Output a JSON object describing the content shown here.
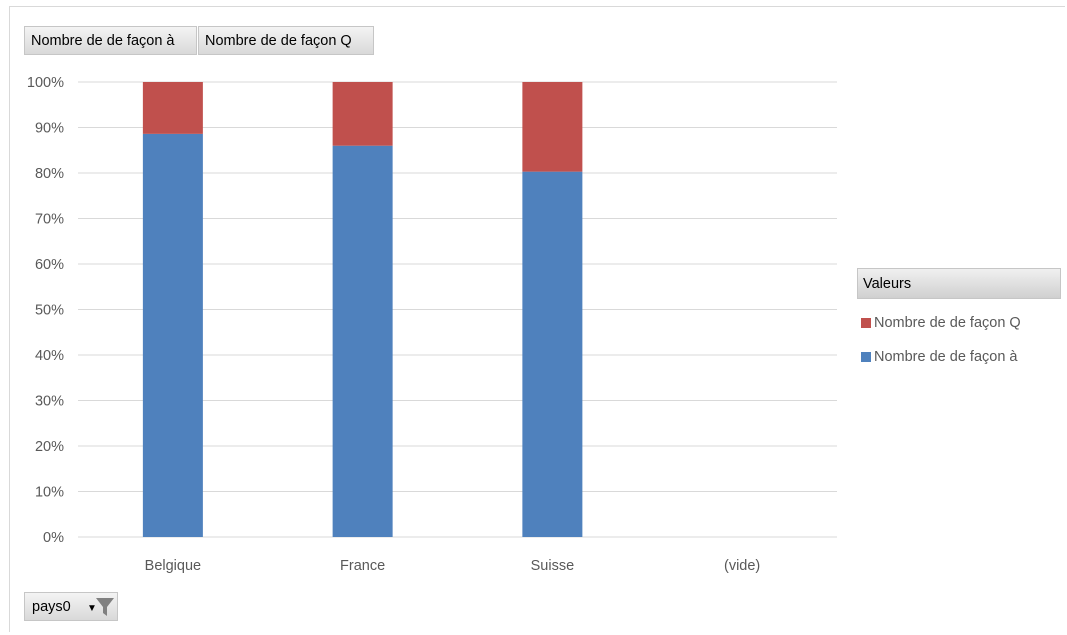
{
  "value_buttons": [
    "Nombre de de façon à",
    "Nombre de de façon Q"
  ],
  "axis_filter": {
    "label": "pays0"
  },
  "legend": {
    "title": "Valeurs",
    "entries": [
      "Nombre de de façon Q",
      "Nombre de de façon à"
    ]
  },
  "colors": {
    "series_a": "#4f81bd",
    "series_q": "#c0504d",
    "grid": "#d9d9d9"
  },
  "chart_data": {
    "type": "bar",
    "stacked": "percent",
    "categories": [
      "Belgique",
      "France",
      "Suisse",
      "(vide)"
    ],
    "series": [
      {
        "name": "Nombre de de façon à",
        "values": [
          88.6,
          86.0,
          80.3,
          0
        ]
      },
      {
        "name": "Nombre de de façon Q",
        "values": [
          11.4,
          14.0,
          19.7,
          0
        ]
      }
    ],
    "yticks": [
      "0%",
      "10%",
      "20%",
      "30%",
      "40%",
      "50%",
      "60%",
      "70%",
      "80%",
      "90%",
      "100%"
    ],
    "ylim": [
      0,
      100
    ],
    "grid": true,
    "legend_position": "right"
  }
}
